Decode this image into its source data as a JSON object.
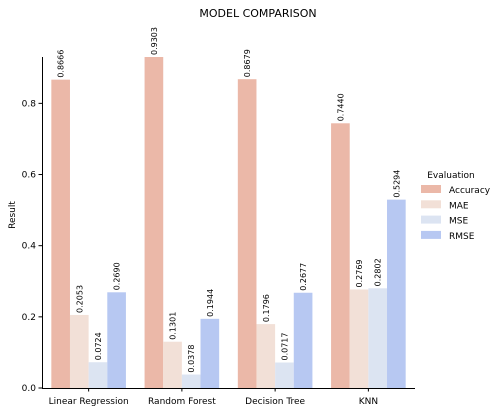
{
  "chart_data": {
    "type": "bar",
    "title": "MODEL COMPARISON",
    "xlabel": "",
    "ylabel": "Result",
    "categories": [
      "Linear Regression",
      "Random Forest",
      "Decision Tree",
      "KNN"
    ],
    "series": [
      {
        "name": "Accuracy",
        "color": "#EBB8A8",
        "values": [
          0.8666,
          0.9303,
          0.8679,
          0.744
        ]
      },
      {
        "name": "MAE",
        "color": "#F2E0D7",
        "values": [
          0.2053,
          0.1301,
          0.1796,
          0.2769
        ]
      },
      {
        "name": "MSE",
        "color": "#DCE4F2",
        "values": [
          0.0724,
          0.0378,
          0.0717,
          0.2802
        ]
      },
      {
        "name": "RMSE",
        "color": "#B7C8F2",
        "values": [
          0.269,
          0.1944,
          0.2677,
          0.5294
        ]
      }
    ],
    "data_labels": [
      [
        "0.8666",
        "0.2053",
        "0.0724",
        "0.2690"
      ],
      [
        "0.9303",
        "0.1301",
        "0.0378",
        "0.1944"
      ],
      [
        "0.8679",
        "0.1796",
        "0.0717",
        "0.2677"
      ],
      [
        "0.7440",
        "0.2769",
        "0.2802",
        "0.5294"
      ]
    ],
    "ylim": [
      0,
      0.9303
    ],
    "yticks": [
      "0.0",
      "0.2",
      "0.4",
      "0.6",
      "0.8"
    ],
    "ytick_values": [
      0,
      0.2,
      0.4,
      0.6,
      0.8
    ],
    "legend": {
      "title": "Evaluation",
      "placement": "right"
    },
    "grid": false
  }
}
